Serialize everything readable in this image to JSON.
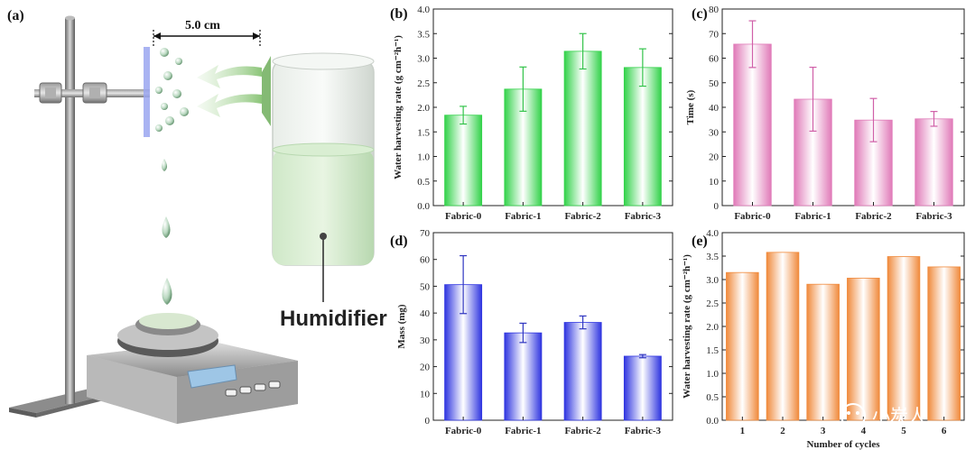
{
  "illustration": {
    "label": "(a)",
    "distance_label": "5.0 cm",
    "humidifier_label": "Humidifier"
  },
  "watermark": {
    "text": "小炭人",
    "icon": "wechat-icon"
  },
  "colors": {
    "green": "#33d24a",
    "pink": "#e07ab8",
    "blue": "#2f35e0",
    "orange": "#f08a3c",
    "error": "#2aa33a"
  },
  "chart_data": [
    {
      "id": "b",
      "label": "(b)",
      "type": "bar",
      "categories": [
        "Fabric-0",
        "Fabric-1",
        "Fabric-2",
        "Fabric-3"
      ],
      "values": [
        1.84,
        2.37,
        3.14,
        2.81
      ],
      "errors": [
        0.18,
        0.45,
        0.36,
        0.38
      ],
      "ylabel": "Water harvesting rate (g cm⁻²h⁻¹)",
      "xlabel": "",
      "ylim": [
        0,
        4.0
      ],
      "yticks": [
        "0.0",
        "0.5",
        "1.0",
        "1.5",
        "2.0",
        "2.5",
        "3.0",
        "3.5",
        "4.0"
      ],
      "color": "#33d24a",
      "error_color": "#33c34a"
    },
    {
      "id": "c",
      "label": "(c)",
      "type": "bar",
      "categories": [
        "Fabric-0",
        "Fabric-1",
        "Fabric-2",
        "Fabric-3"
      ],
      "values": [
        65.7,
        43.3,
        34.8,
        35.3
      ],
      "errors": [
        9.5,
        13.0,
        8.8,
        3.0
      ],
      "ylabel": "Time (s)",
      "xlabel": "",
      "ylim": [
        0,
        80
      ],
      "yticks": [
        "0",
        "10",
        "20",
        "30",
        "40",
        "50",
        "60",
        "70",
        "80"
      ],
      "color": "#e07ab8",
      "error_color": "#d05fa8"
    },
    {
      "id": "d",
      "label": "(d)",
      "type": "bar",
      "categories": [
        "Fabric-0",
        "Fabric-1",
        "Fabric-2",
        "Fabric-3"
      ],
      "values": [
        50.6,
        32.6,
        36.5,
        23.9
      ],
      "errors": [
        10.8,
        3.6,
        2.4,
        0.6
      ],
      "ylabel": "Mass (mg)",
      "xlabel": "",
      "ylim": [
        0,
        70
      ],
      "yticks": [
        "0",
        "10",
        "20",
        "30",
        "40",
        "50",
        "60",
        "70"
      ],
      "color": "#2f35e0",
      "error_color": "#2f35c0"
    },
    {
      "id": "e",
      "label": "(e)",
      "type": "bar",
      "categories": [
        "1",
        "2",
        "3",
        "4",
        "5",
        "6"
      ],
      "values": [
        3.15,
        3.58,
        2.9,
        3.03,
        3.49,
        3.27
      ],
      "errors": [],
      "ylabel": "Water harvesting rate (g cm⁻²h⁻¹)",
      "xlabel": "Number of cycles",
      "ylim": [
        0,
        4.0
      ],
      "yticks": [
        "0.0",
        "0.5",
        "1.0",
        "1.5",
        "2.0",
        "2.5",
        "3.0",
        "3.5",
        "4.0"
      ],
      "color": "#f08a3c",
      "error_color": "#d06a20"
    }
  ]
}
